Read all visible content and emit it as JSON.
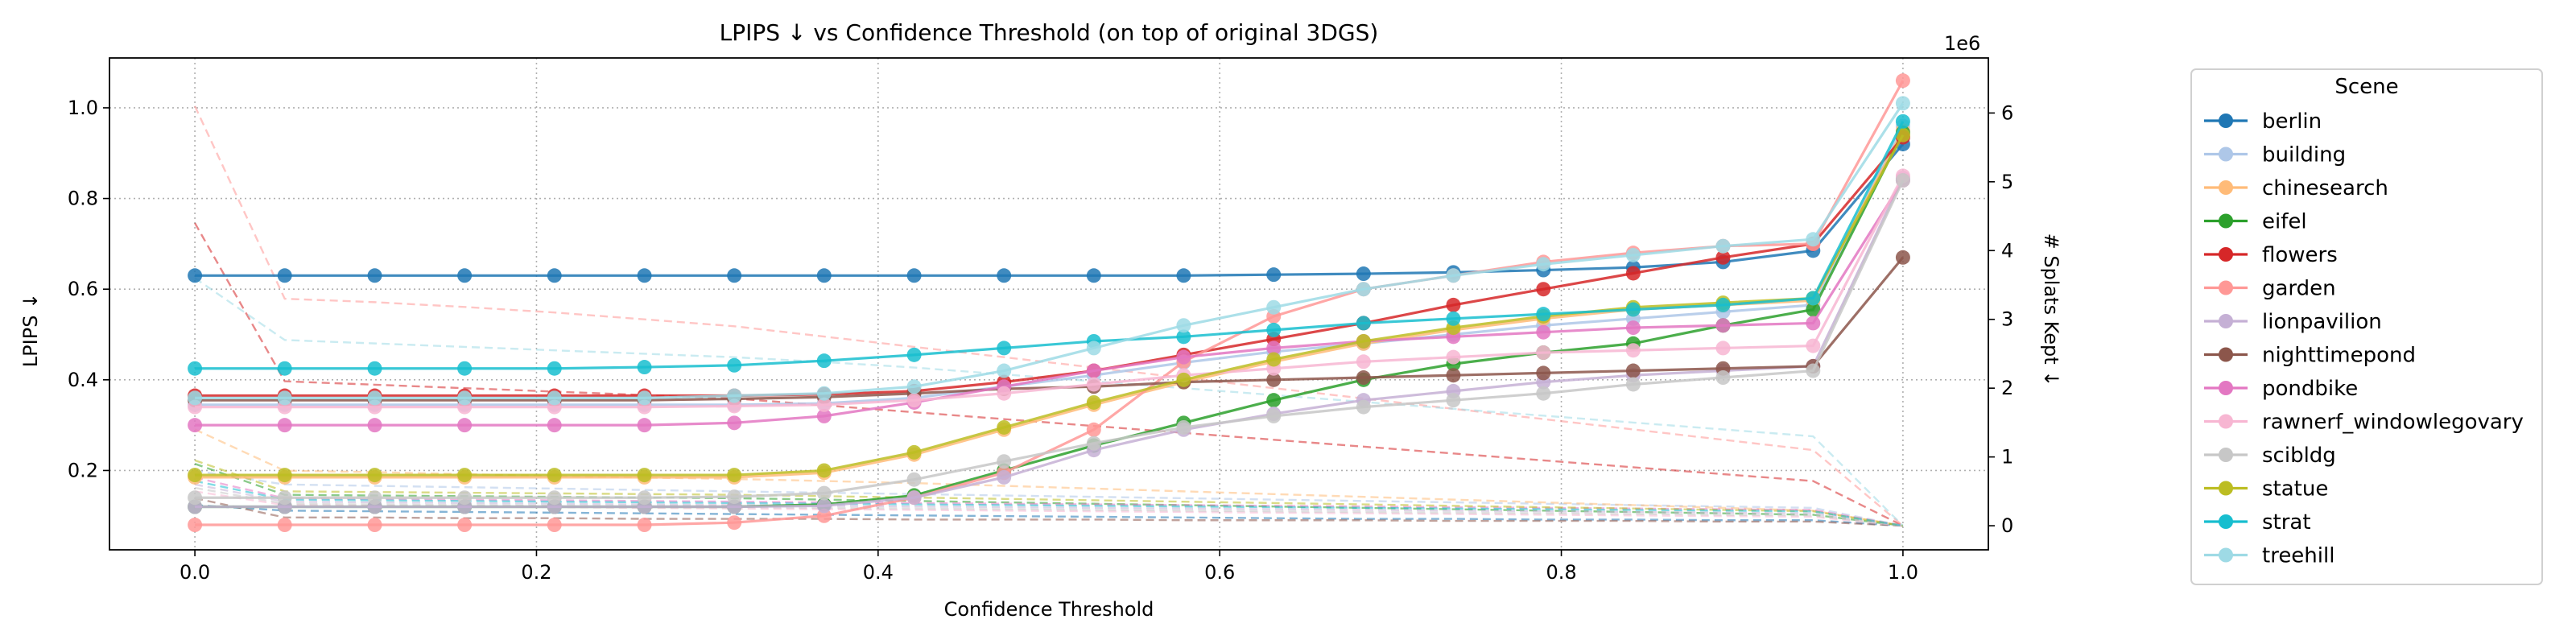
{
  "chart_data": {
    "type": "line",
    "title": "LPIPS ↓ vs Confidence Threshold (on top of original 3DGS)",
    "xlabel": "Confidence Threshold",
    "ylabel": "LPIPS ↓",
    "y2label": "# Splats Kept ↓",
    "y2_scale_label": "1e6",
    "xlim": [
      -0.05,
      1.05
    ],
    "ylim": [
      0.025,
      1.11
    ],
    "y2lim": [
      -0.35,
      6.8
    ],
    "grid": true,
    "legend_position": "right",
    "legend_title": "Scene",
    "x_ticks": [
      "0.0",
      "0.2",
      "0.4",
      "0.6",
      "0.8",
      "1.0"
    ],
    "x_tick_values": [
      0,
      0.2,
      0.4,
      0.6,
      0.8,
      1.0
    ],
    "y_ticks": [
      "0.2",
      "0.4",
      "0.6",
      "0.8",
      "1.0"
    ],
    "y_tick_values": [
      0.2,
      0.4,
      0.6,
      0.8,
      1.0
    ],
    "y2_ticks": [
      "0",
      "1",
      "2",
      "3",
      "4",
      "5",
      "6"
    ],
    "y2_tick_values": [
      0,
      1,
      2,
      3,
      4,
      5,
      6
    ],
    "x": [
      0,
      0.0526,
      0.1053,
      0.1579,
      0.2105,
      0.2632,
      0.3158,
      0.3684,
      0.4211,
      0.4737,
      0.5263,
      0.5789,
      0.6316,
      0.6842,
      0.7368,
      0.7895,
      0.8421,
      0.8947,
      0.9474,
      1.0
    ],
    "series": [
      {
        "name": "berlin",
        "color": "#1f77b4",
        "lpips": [
          0.63,
          0.63,
          0.63,
          0.63,
          0.63,
          0.63,
          0.63,
          0.63,
          0.63,
          0.63,
          0.63,
          0.63,
          0.632,
          0.634,
          0.637,
          0.642,
          0.648,
          0.66,
          0.685,
          0.92
        ],
        "splats_m": [
          0.3,
          0.22,
          0.21,
          0.2,
          0.19,
          0.18,
          0.17,
          0.16,
          0.15,
          0.14,
          0.13,
          0.12,
          0.11,
          0.1,
          0.1,
          0.09,
          0.09,
          0.08,
          0.08,
          0.0
        ]
      },
      {
        "name": "building",
        "color": "#aec7e8",
        "lpips": [
          0.345,
          0.345,
          0.345,
          0.345,
          0.345,
          0.345,
          0.345,
          0.348,
          0.36,
          0.385,
          0.41,
          0.438,
          0.462,
          0.48,
          0.5,
          0.52,
          0.535,
          0.55,
          0.565,
          0.96
        ],
        "splats_m": [
          0.8,
          0.6,
          0.58,
          0.56,
          0.54,
          0.52,
          0.5,
          0.48,
          0.46,
          0.44,
          0.42,
          0.4,
          0.38,
          0.36,
          0.34,
          0.32,
          0.3,
          0.28,
          0.26,
          0.0
        ]
      },
      {
        "name": "chinesearch",
        "color": "#ffbb78",
        "lpips": [
          0.185,
          0.185,
          0.185,
          0.185,
          0.185,
          0.185,
          0.185,
          0.195,
          0.235,
          0.29,
          0.345,
          0.395,
          0.44,
          0.48,
          0.51,
          0.535,
          0.555,
          0.565,
          0.575,
          0.95
        ],
        "splats_m": [
          1.4,
          0.8,
          0.78,
          0.75,
          0.72,
          0.7,
          0.68,
          0.65,
          0.62,
          0.58,
          0.54,
          0.5,
          0.46,
          0.42,
          0.38,
          0.34,
          0.3,
          0.26,
          0.22,
          0.0
        ]
      },
      {
        "name": "eifel",
        "color": "#2ca02c",
        "lpips": [
          0.12,
          0.12,
          0.12,
          0.12,
          0.12,
          0.12,
          0.12,
          0.125,
          0.145,
          0.2,
          0.255,
          0.305,
          0.355,
          0.4,
          0.435,
          0.46,
          0.48,
          0.52,
          0.555,
          0.945
        ],
        "splats_m": [
          0.9,
          0.45,
          0.44,
          0.43,
          0.42,
          0.41,
          0.4,
          0.38,
          0.36,
          0.34,
          0.32,
          0.3,
          0.28,
          0.26,
          0.24,
          0.22,
          0.2,
          0.18,
          0.16,
          0.0
        ]
      },
      {
        "name": "flowers",
        "color": "#d62728",
        "lpips": [
          0.365,
          0.365,
          0.365,
          0.365,
          0.365,
          0.365,
          0.365,
          0.368,
          0.375,
          0.395,
          0.42,
          0.455,
          0.49,
          0.525,
          0.565,
          0.6,
          0.635,
          0.67,
          0.7,
          0.935
        ],
        "splats_m": [
          4.4,
          2.1,
          2.05,
          2.0,
          1.95,
          1.9,
          1.85,
          1.75,
          1.65,
          1.55,
          1.45,
          1.35,
          1.25,
          1.15,
          1.05,
          0.95,
          0.85,
          0.75,
          0.65,
          0.0
        ]
      },
      {
        "name": "garden",
        "color": "#ff9896",
        "lpips": [
          0.08,
          0.08,
          0.08,
          0.08,
          0.08,
          0.08,
          0.085,
          0.1,
          0.14,
          0.195,
          0.29,
          0.44,
          0.54,
          0.6,
          0.63,
          0.66,
          0.68,
          0.695,
          0.7,
          1.06
        ],
        "splats_m": [
          6.1,
          3.3,
          3.25,
          3.18,
          3.1,
          3.0,
          2.9,
          2.75,
          2.6,
          2.45,
          2.3,
          2.15,
          2.0,
          1.85,
          1.7,
          1.55,
          1.4,
          1.25,
          1.1,
          0.0
        ]
      },
      {
        "name": "lionpavilion",
        "color": "#c5b0d5",
        "lpips": [
          0.12,
          0.12,
          0.12,
          0.12,
          0.12,
          0.12,
          0.12,
          0.122,
          0.14,
          0.185,
          0.245,
          0.29,
          0.325,
          0.355,
          0.375,
          0.395,
          0.41,
          0.42,
          0.43,
          0.845
        ],
        "splats_m": [
          0.6,
          0.35,
          0.34,
          0.33,
          0.32,
          0.31,
          0.3,
          0.29,
          0.28,
          0.27,
          0.26,
          0.25,
          0.24,
          0.23,
          0.22,
          0.21,
          0.2,
          0.19,
          0.18,
          0.0
        ]
      },
      {
        "name": "nighttimepond",
        "color": "#8c564b",
        "lpips": [
          0.355,
          0.355,
          0.355,
          0.355,
          0.355,
          0.355,
          0.358,
          0.362,
          0.37,
          0.38,
          0.385,
          0.395,
          0.4,
          0.405,
          0.41,
          0.415,
          0.42,
          0.425,
          0.43,
          0.67
        ],
        "splats_m": [
          0.4,
          0.12,
          0.12,
          0.11,
          0.11,
          0.1,
          0.1,
          0.1,
          0.09,
          0.09,
          0.09,
          0.08,
          0.08,
          0.08,
          0.07,
          0.07,
          0.07,
          0.06,
          0.06,
          0.0
        ]
      },
      {
        "name": "pondbike",
        "color": "#e377c2",
        "lpips": [
          0.3,
          0.3,
          0.3,
          0.3,
          0.3,
          0.3,
          0.305,
          0.32,
          0.35,
          0.385,
          0.42,
          0.45,
          0.47,
          0.485,
          0.495,
          0.505,
          0.515,
          0.52,
          0.525,
          0.84
        ],
        "splats_m": [
          0.7,
          0.4,
          0.39,
          0.38,
          0.37,
          0.36,
          0.35,
          0.34,
          0.33,
          0.32,
          0.31,
          0.3,
          0.29,
          0.28,
          0.27,
          0.26,
          0.25,
          0.24,
          0.23,
          0.0
        ]
      },
      {
        "name": "rawnerf_windowlegovary",
        "color": "#f7b6d2",
        "lpips": [
          0.34,
          0.34,
          0.34,
          0.34,
          0.34,
          0.34,
          0.342,
          0.345,
          0.355,
          0.37,
          0.39,
          0.41,
          0.425,
          0.44,
          0.45,
          0.46,
          0.465,
          0.47,
          0.475,
          0.85
        ],
        "splats_m": [
          0.5,
          0.3,
          0.29,
          0.28,
          0.27,
          0.26,
          0.25,
          0.24,
          0.23,
          0.22,
          0.21,
          0.2,
          0.19,
          0.18,
          0.17,
          0.16,
          0.15,
          0.14,
          0.13,
          0.0
        ]
      },
      {
        "name": "scibldg",
        "color": "#c7c7c7",
        "lpips": [
          0.14,
          0.14,
          0.14,
          0.14,
          0.14,
          0.14,
          0.142,
          0.15,
          0.18,
          0.22,
          0.26,
          0.295,
          0.32,
          0.34,
          0.355,
          0.37,
          0.39,
          0.405,
          0.42,
          0.84
        ],
        "splats_m": [
          0.55,
          0.32,
          0.31,
          0.3,
          0.29,
          0.28,
          0.27,
          0.26,
          0.25,
          0.24,
          0.23,
          0.22,
          0.21,
          0.2,
          0.19,
          0.18,
          0.17,
          0.16,
          0.15,
          0.0
        ]
      },
      {
        "name": "statue",
        "color": "#bcbd22",
        "lpips": [
          0.19,
          0.19,
          0.19,
          0.19,
          0.19,
          0.19,
          0.19,
          0.2,
          0.24,
          0.295,
          0.35,
          0.4,
          0.445,
          0.485,
          0.515,
          0.54,
          0.56,
          0.57,
          0.58,
          0.94
        ],
        "splats_m": [
          0.95,
          0.5,
          0.49,
          0.48,
          0.47,
          0.46,
          0.45,
          0.43,
          0.41,
          0.39,
          0.37,
          0.35,
          0.33,
          0.31,
          0.29,
          0.27,
          0.25,
          0.23,
          0.21,
          0.0
        ]
      },
      {
        "name": "strat",
        "color": "#17becf",
        "lpips": [
          0.425,
          0.425,
          0.425,
          0.425,
          0.425,
          0.428,
          0.432,
          0.442,
          0.455,
          0.47,
          0.485,
          0.495,
          0.51,
          0.525,
          0.535,
          0.545,
          0.555,
          0.565,
          0.58,
          0.97
        ],
        "splats_m": [
          0.65,
          0.38,
          0.37,
          0.36,
          0.35,
          0.34,
          0.33,
          0.32,
          0.31,
          0.3,
          0.29,
          0.28,
          0.27,
          0.26,
          0.25,
          0.24,
          0.23,
          0.22,
          0.21,
          0.0
        ]
      },
      {
        "name": "treehill",
        "color": "#9edae5",
        "lpips": [
          0.36,
          0.36,
          0.36,
          0.36,
          0.36,
          0.36,
          0.365,
          0.37,
          0.385,
          0.42,
          0.47,
          0.52,
          0.56,
          0.6,
          0.63,
          0.655,
          0.675,
          0.695,
          0.71,
          1.01
        ],
        "splats_m": [
          3.6,
          2.7,
          2.65,
          2.6,
          2.55,
          2.5,
          2.45,
          2.38,
          2.3,
          2.2,
          2.1,
          2.0,
          1.9,
          1.8,
          1.7,
          1.6,
          1.5,
          1.4,
          1.3,
          0.0
        ]
      }
    ]
  }
}
